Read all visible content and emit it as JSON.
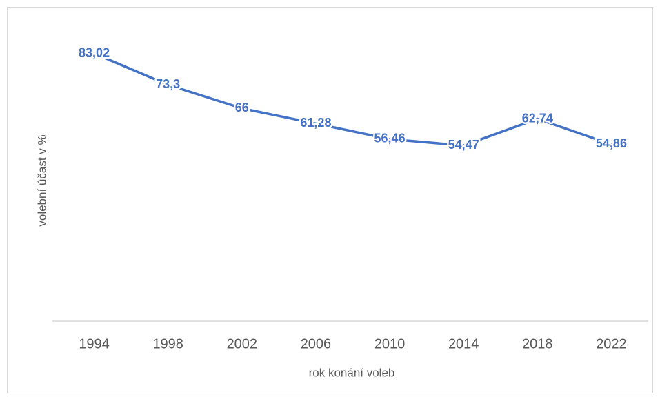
{
  "chart_data": {
    "type": "line",
    "categories": [
      "1994",
      "1998",
      "2002",
      "2006",
      "2010",
      "2014",
      "2018",
      "2022"
    ],
    "series": [
      {
        "color": "#4472c4",
        "values": [
          83.02,
          73.3,
          66,
          61.28,
          56.46,
          54.47,
          62.74,
          54.86
        ],
        "value_labels": [
          "83,02",
          "73,3",
          "66",
          "61,28",
          "56,46",
          "54,47",
          "62,74",
          "54,86"
        ]
      }
    ],
    "xlabel": "rok konání voleb",
    "ylabel": "volební účast  v %",
    "ylim": [
      0,
      90
    ]
  }
}
